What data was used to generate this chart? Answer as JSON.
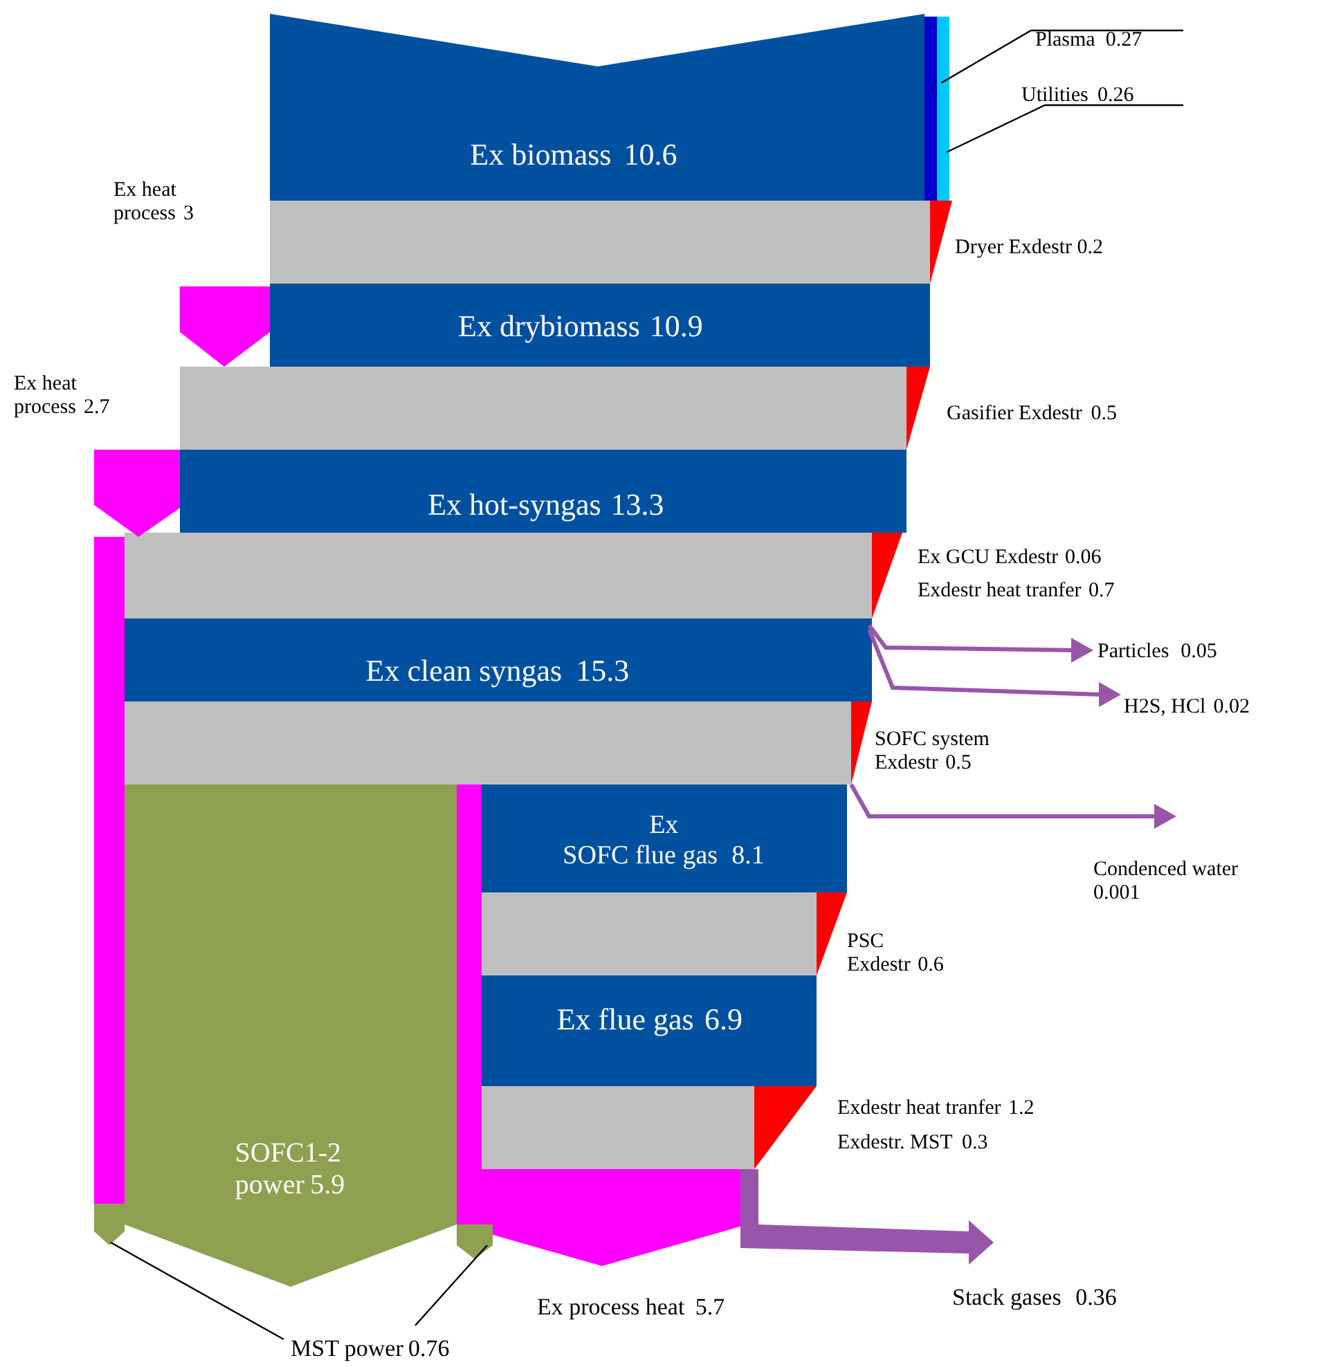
{
  "chart_data": {
    "type": "other",
    "categories": [
      "Ex biomass",
      "Plasma",
      "Utilities",
      "Ex heat process",
      "Dryer Exdestr",
      "Ex drybiomass",
      "Ex heat process",
      "Gasifier Exdestr",
      "Ex hot-syngas",
      "Ex GCU Exdestr",
      "Exdestr heat tranfer",
      "Ex clean syngas",
      "Particles",
      "H2S, HCl",
      "SOFC system Exdestr",
      "Condenced water",
      "SOFC1-2 power",
      "Ex SOFC flue gas",
      "PSC Exdestr",
      "Ex flue gas",
      "Exdestr heat tranfer",
      "Exdestr. MST",
      "Ex process heat",
      "Stack gases",
      "MST power"
    ],
    "values": [
      10.6,
      0.27,
      0.26,
      3,
      0.2,
      10.9,
      2.7,
      0.5,
      13.3,
      0.06,
      0.7,
      15.3,
      0.05,
      0.02,
      0.5,
      0.001,
      5.9,
      8.1,
      0.6,
      6.9,
      1.2,
      0.3,
      5.7,
      0.36,
      0.76
    ],
    "colors": [
      "#0050a0",
      "#0000cc",
      "#00c8ff",
      "#ff00ff",
      "#ff0000",
      "#0050a0",
      "#ff00ff",
      "#ff0000",
      "#0050a0",
      "#ff0000",
      "#ff0000",
      "#0050a0",
      "#9955aa",
      "#9955aa",
      "#ff0000",
      "#9955aa",
      "#8fa050",
      "#0050a0",
      "#ff0000",
      "#0050a0",
      "#ff0000",
      "#ff0000",
      "#ff00ff",
      "#9955aa",
      "#8fa050"
    ],
    "data_labels": true
  }
}
